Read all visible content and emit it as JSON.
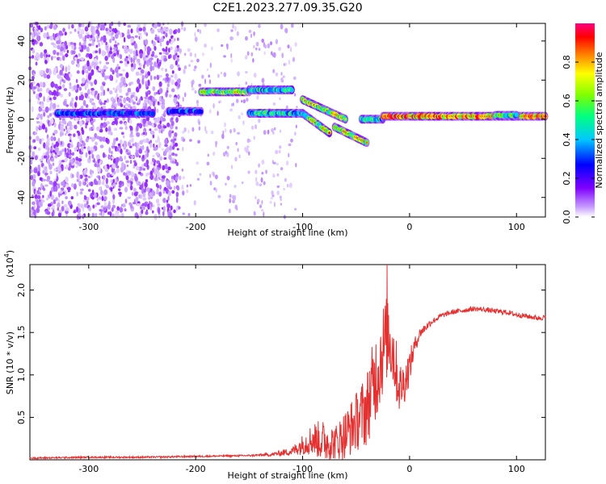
{
  "title": "C2E1.2023.277.09.35.G20",
  "chart_data": [
    {
      "type": "heatmap",
      "xlabel": "Height of straight line (km)",
      "ylabel": "Frequency (Hz)",
      "xlim": [
        -355,
        127
      ],
      "ylim": [
        -50,
        49
      ],
      "xticks": [
        -300,
        -200,
        -100,
        0,
        100
      ],
      "yticks": [
        -40,
        -20,
        0,
        20,
        40
      ],
      "colorbar": {
        "label": "Normalized spectral amplitude",
        "range": [
          0.0,
          1.0
        ],
        "ticks": [
          0.0,
          0.2,
          0.4,
          0.6,
          0.8
        ],
        "colors": [
          "#ffffff",
          "#c8a0ff",
          "#8000ff",
          "#0000ff",
          "#00c8ff",
          "#00ff80",
          "#80ff00",
          "#ffff00",
          "#ff8000",
          "#ff0000",
          "#ff0080"
        ]
      },
      "features": [
        {
          "x_range": [
            -355,
            -215
          ],
          "y_range": [
            -50,
            49
          ],
          "amplitude": 0.15,
          "kind": "noise"
        },
        {
          "x_range": [
            -330,
            -240
          ],
          "y_center": 3,
          "amplitude": 0.4,
          "kind": "band"
        },
        {
          "x_range": [
            -225,
            -195
          ],
          "y_center": 4,
          "amplitude": 0.4,
          "kind": "band"
        },
        {
          "x_range": [
            -195,
            -150
          ],
          "y_center": 14,
          "amplitude": 0.7,
          "kind": "band"
        },
        {
          "x_range": [
            -150,
            -110
          ],
          "y_center": 15,
          "amplitude": 0.55,
          "kind": "band"
        },
        {
          "x_range": [
            -150,
            -100
          ],
          "y_center": 3,
          "amplitude": 0.55,
          "kind": "band"
        },
        {
          "x_range": [
            -100,
            -75
          ],
          "y_center_start": 3,
          "y_center_end": -7,
          "amplitude": 0.65,
          "kind": "band"
        },
        {
          "x_range": [
            -100,
            -60
          ],
          "y_center_start": 10,
          "y_center_end": 0,
          "amplitude": 0.75,
          "kind": "band"
        },
        {
          "x_range": [
            -70,
            -40
          ],
          "y_center_start": -4,
          "y_center_end": -12,
          "amplitude": 0.7,
          "kind": "band"
        },
        {
          "x_range": [
            -45,
            -25
          ],
          "y_center": 0,
          "amplitude": 0.55,
          "kind": "band"
        },
        {
          "x_range": [
            -25,
            127
          ],
          "y_center": 1.5,
          "amplitude": 0.95,
          "kind": "band"
        },
        {
          "x_range": [
            80,
            100
          ],
          "y_center": 2,
          "amplitude": 0.6,
          "kind": "band"
        }
      ]
    },
    {
      "type": "line",
      "xlabel": "Height of straight line (km)",
      "ylabel": "SNR (10 * v/v)",
      "y_multiplier": "(x10",
      "y_exponent": "4",
      "y_multiplier_close": ")",
      "xlim": [
        -355,
        127
      ],
      "ylim": [
        0,
        2.3
      ],
      "xticks": [
        -300,
        -200,
        -100,
        0,
        100
      ],
      "yticks": [
        0.5,
        1.0,
        1.5,
        2.0
      ],
      "ytick_labels": [
        "0.5",
        "1.0",
        "1.5",
        "2.0"
      ],
      "series": [
        {
          "color": "#e53030",
          "x": [
            -355,
            -300,
            -250,
            -200,
            -150,
            -130,
            -110,
            -100,
            -90,
            -80,
            -70,
            -60,
            -50,
            -40,
            -35,
            -30,
            -25,
            -20,
            -15,
            -10,
            -5,
            0,
            5,
            10,
            20,
            30,
            40,
            50,
            60,
            70,
            80,
            90,
            100,
            110,
            120,
            127
          ],
          "y": [
            0.02,
            0.03,
            0.03,
            0.04,
            0.05,
            0.06,
            0.1,
            0.18,
            0.25,
            0.22,
            0.2,
            0.3,
            0.45,
            0.6,
            0.85,
            1.05,
            1.3,
            1.5,
            1.25,
            0.85,
            0.9,
            1.1,
            1.35,
            1.5,
            1.62,
            1.7,
            1.74,
            1.76,
            1.78,
            1.77,
            1.75,
            1.74,
            1.71,
            1.69,
            1.67,
            1.68
          ],
          "noise_envelope": [
            0.01,
            0.01,
            0.01,
            0.01,
            0.01,
            0.02,
            0.05,
            0.12,
            0.2,
            0.25,
            0.2,
            0.3,
            0.35,
            0.45,
            0.5,
            0.55,
            0.55,
            0.5,
            0.45,
            0.3,
            0.25,
            0.2,
            0.1,
            0.06,
            0.04,
            0.03,
            0.03,
            0.03,
            0.03,
            0.03,
            0.03,
            0.03,
            0.03,
            0.03,
            0.03,
            0.03
          ],
          "peak": {
            "x": -21,
            "y": 2.3
          }
        }
      ]
    }
  ]
}
